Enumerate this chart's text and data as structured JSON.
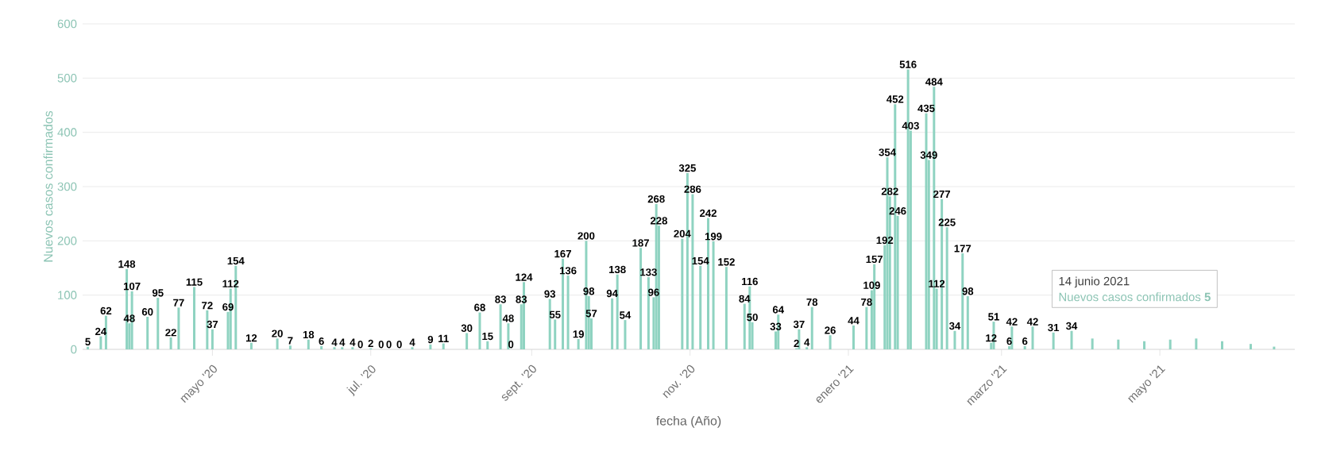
{
  "chart_data": {
    "type": "bar",
    "xlabel": "fecha (Año)",
    "ylabel": "Nuevos casos confirmados",
    "x": [
      "2020-03-14",
      "2020-03-19",
      "2020-03-21",
      "2020-03-29",
      "2020-03-30",
      "2020-03-31",
      "2020-04-06",
      "2020-04-10",
      "2020-04-15",
      "2020-04-18",
      "2020-04-24",
      "2020-04-29",
      "2020-05-01",
      "2020-05-07",
      "2020-05-08",
      "2020-05-10",
      "2020-05-16",
      "2020-05-26",
      "2020-05-31",
      "2020-06-07",
      "2020-06-12",
      "2020-06-17",
      "2020-06-20",
      "2020-06-24",
      "2020-06-27",
      "2020-07-01",
      "2020-07-05",
      "2020-07-08",
      "2020-07-12",
      "2020-07-17",
      "2020-07-24",
      "2020-07-29",
      "2020-08-07",
      "2020-08-12",
      "2020-08-15",
      "2020-08-20",
      "2020-08-23",
      "2020-08-24",
      "2020-08-28",
      "2020-08-29",
      "2020-09-08",
      "2020-09-10",
      "2020-09-13",
      "2020-09-15",
      "2020-09-19",
      "2020-09-22",
      "2020-09-23",
      "2020-09-24",
      "2020-10-02",
      "2020-10-04",
      "2020-10-07",
      "2020-10-13",
      "2020-10-16",
      "2020-10-18",
      "2020-10-19",
      "2020-10-20",
      "2020-10-29",
      "2020-10-31",
      "2020-11-02",
      "2020-11-05",
      "2020-11-08",
      "2020-11-10",
      "2020-11-15",
      "2020-11-22",
      "2020-11-24",
      "2020-11-25",
      "2020-12-04",
      "2020-12-05",
      "2020-12-12",
      "2020-12-13",
      "2020-12-16",
      "2020-12-18",
      "2020-12-25",
      "2021-01-03",
      "2021-01-08",
      "2021-01-10",
      "2021-01-11",
      "2021-01-15",
      "2021-01-16",
      "2021-01-17",
      "2021-01-19",
      "2021-01-20",
      "2021-01-24",
      "2021-01-25",
      "2021-01-31",
      "2021-02-01",
      "2021-02-03",
      "2021-02-04",
      "2021-02-06",
      "2021-02-08",
      "2021-02-11",
      "2021-02-14",
      "2021-02-16",
      "2021-02-25",
      "2021-02-26",
      "2021-03-04",
      "2021-03-05",
      "2021-03-10",
      "2021-03-13",
      "2021-03-21",
      "2021-03-28",
      "2021-04-05",
      "2021-04-15",
      "2021-04-25",
      "2021-05-05",
      "2021-05-15",
      "2021-05-25",
      "2021-06-05",
      "2021-06-14"
    ],
    "values": [
      5,
      24,
      62,
      148,
      48,
      107,
      60,
      95,
      22,
      77,
      115,
      72,
      37,
      69,
      112,
      154,
      12,
      20,
      7,
      18,
      6,
      4,
      4,
      4,
      0,
      2,
      0,
      0,
      0,
      4,
      9,
      11,
      30,
      68,
      15,
      83,
      48,
      0,
      83,
      124,
      93,
      55,
      167,
      136,
      19,
      200,
      98,
      57,
      94,
      138,
      54,
      187,
      133,
      96,
      268,
      228,
      204,
      325,
      286,
      154,
      242,
      199,
      152,
      84,
      116,
      50,
      33,
      64,
      2,
      37,
      4,
      78,
      26,
      44,
      78,
      109,
      157,
      192,
      354,
      282,
      452,
      246,
      516,
      403,
      435,
      349,
      484,
      112,
      277,
      225,
      34,
      177,
      98,
      12,
      51,
      6,
      42,
      6,
      42,
      31,
      34,
      20,
      18,
      15,
      18,
      20,
      15,
      10,
      5
    ],
    "value_labels": [
      "5",
      "24",
      "62",
      "148",
      "48",
      "107",
      "60",
      "95",
      "22",
      "77",
      "115",
      "72",
      "37",
      "69",
      "112",
      "154",
      "12",
      "20",
      "7",
      "18",
      "6",
      "4",
      "4",
      "4",
      "0",
      "2",
      "0",
      "0",
      "0",
      "4",
      "9",
      "11",
      "30",
      "68",
      "15",
      "83",
      "48",
      "0",
      "83",
      "124",
      "93",
      "55",
      "167",
      "136",
      "19",
      "200",
      "98",
      "57",
      "94",
      "138",
      "54",
      "187",
      "133",
      "96",
      "268",
      "228",
      "204",
      "325",
      "286",
      "154",
      "242",
      "199",
      "152",
      "84",
      "116",
      "50",
      "33",
      "64",
      "2",
      "37",
      "4",
      "78",
      "26",
      "44",
      "78",
      "109",
      "157",
      "192",
      "354",
      "282",
      "452",
      "246",
      "516",
      "403",
      "435",
      "349",
      "484",
      "112",
      "277",
      "225",
      "34",
      "177",
      "98",
      "12",
      "51",
      "6",
      "42",
      "6",
      "42",
      "31",
      "34",
      null,
      null,
      null,
      null,
      null,
      null,
      null,
      null
    ],
    "color": "#8fd3c1",
    "xlim": [
      "2020-03-12",
      "2021-06-22"
    ],
    "xticks": [
      {
        "value": "2020-05-01",
        "label": "mayo '20"
      },
      {
        "value": "2020-07-01",
        "label": "jul. '20"
      },
      {
        "value": "2020-09-01",
        "label": "sept. '20"
      },
      {
        "value": "2020-11-01",
        "label": "nov. '20"
      },
      {
        "value": "2021-01-01",
        "label": "enero '21"
      },
      {
        "value": "2021-03-01",
        "label": "marzo '21"
      },
      {
        "value": "2021-05-01",
        "label": "mayo '21"
      }
    ],
    "ylim": [
      0,
      600
    ],
    "yticks": [
      0,
      100,
      200,
      300,
      400,
      500,
      600
    ],
    "grid": "y",
    "legend": false,
    "annotations": [
      "14 junio 2021",
      "Nuevos casos confirmados **5**"
    ]
  }
}
